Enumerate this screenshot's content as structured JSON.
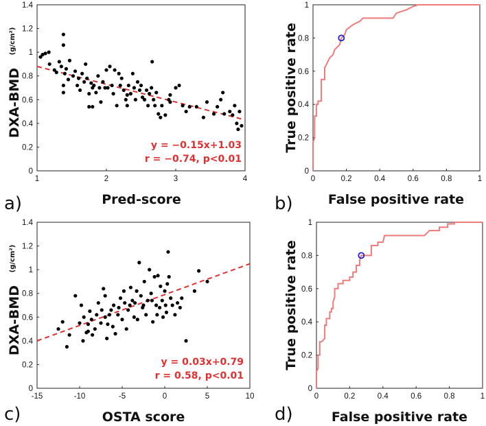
{
  "chart_data": [
    {
      "panel": "a)",
      "type": "scatter",
      "xlabel": "Pred-score",
      "ylabel": "DXA-BMD",
      "ylabel_unit": "(g/cm²)",
      "xlim": [
        1,
        4
      ],
      "ylim": [
        0,
        1.4
      ],
      "xticks": [
        1,
        2,
        3,
        4
      ],
      "yticks": [
        0,
        0.2,
        0.4,
        0.6,
        0.8,
        1,
        1.2,
        1.4
      ],
      "fit_line": {
        "slope": -0.15,
        "intercept": 1.03,
        "color": "#e03030"
      },
      "annotation": [
        "y = −0.15x+1.03",
        "r = −0.74, p<0.01"
      ],
      "point_color": "#000000",
      "points": [
        [
          1.05,
          0.96
        ],
        [
          1.08,
          0.98
        ],
        [
          1.12,
          0.99
        ],
        [
          1.17,
          1.0
        ],
        [
          1.18,
          0.9
        ],
        [
          1.25,
          0.85
        ],
        [
          1.28,
          0.83
        ],
        [
          1.32,
          0.92
        ],
        [
          1.35,
          0.88
        ],
        [
          1.38,
          1.15
        ],
        [
          1.38,
          1.06
        ],
        [
          1.38,
          0.72
        ],
        [
          1.38,
          0.66
        ],
        [
          1.4,
          0.82
        ],
        [
          1.42,
          0.86
        ],
        [
          1.45,
          0.77
        ],
        [
          1.47,
          0.93
        ],
        [
          1.52,
          0.8
        ],
        [
          1.55,
          0.84
        ],
        [
          1.58,
          0.72
        ],
        [
          1.6,
          0.78
        ],
        [
          1.62,
          0.68
        ],
        [
          1.65,
          0.82
        ],
        [
          1.68,
          0.75
        ],
        [
          1.7,
          0.9
        ],
        [
          1.72,
          0.78
        ],
        [
          1.75,
          0.65
        ],
        [
          1.75,
          0.54
        ],
        [
          1.78,
          0.74
        ],
        [
          1.8,
          0.7
        ],
        [
          1.8,
          0.54
        ],
        [
          1.82,
          0.72
        ],
        [
          1.85,
          0.66
        ],
        [
          1.88,
          0.8
        ],
        [
          1.9,
          0.7
        ],
        [
          1.92,
          0.58
        ],
        [
          1.95,
          0.75
        ],
        [
          1.98,
          0.7
        ],
        [
          2.0,
          0.85
        ],
        [
          2.02,
          0.7
        ],
        [
          2.05,
          0.88
        ],
        [
          2.08,
          0.72
        ],
        [
          2.1,
          0.65
        ],
        [
          2.12,
          0.85
        ],
        [
          2.15,
          0.55
        ],
        [
          2.18,
          0.82
        ],
        [
          2.2,
          0.72
        ],
        [
          2.22,
          0.78
        ],
        [
          2.25,
          0.68
        ],
        [
          2.28,
          0.6
        ],
        [
          2.3,
          0.64
        ],
        [
          2.3,
          0.55
        ],
        [
          2.32,
          0.72
        ],
        [
          2.35,
          0.65
        ],
        [
          2.38,
          0.82
        ],
        [
          2.4,
          0.7
        ],
        [
          2.42,
          0.6
        ],
        [
          2.45,
          0.75
        ],
        [
          2.48,
          0.68
        ],
        [
          2.5,
          0.72
        ],
        [
          2.52,
          0.62
        ],
        [
          2.55,
          0.6
        ],
        [
          2.58,
          0.68
        ],
        [
          2.6,
          0.55
        ],
        [
          2.62,
          0.65
        ],
        [
          2.65,
          0.7
        ],
        [
          2.66,
          0.92
        ],
        [
          2.68,
          0.6
        ],
        [
          2.7,
          0.55
        ],
        [
          2.72,
          0.66
        ],
        [
          2.75,
          0.48
        ],
        [
          2.78,
          0.45
        ],
        [
          2.8,
          0.55
        ],
        [
          2.85,
          0.47
        ],
        [
          2.9,
          0.6
        ],
        [
          2.92,
          0.58
        ],
        [
          2.92,
          0.64
        ],
        [
          3.0,
          0.7
        ],
        [
          3.05,
          0.72
        ],
        [
          3.1,
          0.55
        ],
        [
          3.15,
          0.5
        ],
        [
          3.2,
          0.54
        ],
        [
          3.3,
          0.54
        ],
        [
          3.4,
          0.45
        ],
        [
          3.45,
          0.58
        ],
        [
          3.55,
          0.48
        ],
        [
          3.6,
          0.54
        ],
        [
          3.65,
          0.6
        ],
        [
          3.68,
          0.66
        ],
        [
          3.7,
          0.48
        ],
        [
          3.78,
          0.5
        ],
        [
          3.82,
          0.47
        ],
        [
          3.85,
          0.55
        ],
        [
          3.88,
          0.4
        ],
        [
          3.9,
          0.35
        ],
        [
          3.92,
          0.5
        ],
        [
          3.95,
          0.38
        ]
      ]
    },
    {
      "panel": "b)",
      "type": "line",
      "xlabel": "False positive rate",
      "ylabel": "True positive rate",
      "xlim": [
        0,
        1
      ],
      "ylim": [
        0,
        1
      ],
      "xticks": [
        0,
        0.2,
        0.4,
        0.6,
        0.8,
        1
      ],
      "yticks": [
        0,
        0.2,
        0.4,
        0.6,
        0.8,
        1
      ],
      "line_color": "#f07a7a",
      "roc": [
        [
          0,
          0
        ],
        [
          0,
          0.03
        ],
        [
          0,
          0.17
        ],
        [
          0.01,
          0.2
        ],
        [
          0.01,
          0.33
        ],
        [
          0.02,
          0.33
        ],
        [
          0.02,
          0.4
        ],
        [
          0.03,
          0.4
        ],
        [
          0.03,
          0.42
        ],
        [
          0.05,
          0.42
        ],
        [
          0.05,
          0.55
        ],
        [
          0.07,
          0.55
        ],
        [
          0.07,
          0.62
        ],
        [
          0.1,
          0.68
        ],
        [
          0.12,
          0.7
        ],
        [
          0.13,
          0.73
        ],
        [
          0.16,
          0.76
        ],
        [
          0.17,
          0.8
        ],
        [
          0.19,
          0.82
        ],
        [
          0.2,
          0.85
        ],
        [
          0.24,
          0.88
        ],
        [
          0.28,
          0.9
        ],
        [
          0.3,
          0.92
        ],
        [
          0.48,
          0.92
        ],
        [
          0.5,
          0.95
        ],
        [
          0.56,
          0.97
        ],
        [
          0.6,
          0.99
        ],
        [
          0.63,
          1.0
        ],
        [
          1.0,
          1.0
        ]
      ],
      "marker": {
        "x": 0.17,
        "y": 0.8,
        "color": "#2020d0"
      }
    },
    {
      "panel": "c)",
      "type": "scatter",
      "xlabel": "OSTA score",
      "ylabel": "DXA-BMD",
      "ylabel_unit": "(g/cm²)",
      "xlim": [
        -15,
        10
      ],
      "ylim": [
        0,
        1.4
      ],
      "xticks": [
        -15,
        -10,
        -5,
        0,
        5,
        10
      ],
      "yticks": [
        0,
        0.2,
        0.4,
        0.6,
        0.8,
        1,
        1.2,
        1.4
      ],
      "fit_line": {
        "slope": 0.026,
        "intercept": 0.79,
        "color": "#e03030"
      },
      "annotation": [
        "y = 0.03x+0.79",
        "r = 0.58, p<0.01"
      ],
      "point_color": "#000000",
      "points": [
        [
          -12.5,
          0.5
        ],
        [
          -12.0,
          0.56
        ],
        [
          -11.5,
          0.35
        ],
        [
          -11.2,
          0.45
        ],
        [
          -10.0,
          0.55
        ],
        [
          -9.8,
          0.7
        ],
        [
          -9.6,
          0.4
        ],
        [
          -9.5,
          0.6
        ],
        [
          -9.2,
          0.47
        ],
        [
          -9.0,
          0.48
        ],
        [
          -8.8,
          0.65
        ],
        [
          -8.5,
          0.45
        ],
        [
          -8.2,
          0.5
        ],
        [
          -8.0,
          0.62
        ],
        [
          -7.8,
          0.72
        ],
        [
          -7.5,
          0.55
        ],
        [
          -7.2,
          0.84
        ],
        [
          -7.0,
          0.6
        ],
        [
          -6.8,
          0.42
        ],
        [
          -6.7,
          0.54
        ],
        [
          -6.5,
          0.62
        ],
        [
          -6.3,
          0.66
        ],
        [
          -6.0,
          0.7
        ],
        [
          -5.8,
          0.46
        ],
        [
          -5.5,
          0.62
        ],
        [
          -5.2,
          0.76
        ],
        [
          -5.0,
          0.58
        ],
        [
          -4.8,
          0.82
        ],
        [
          -4.7,
          0.72
        ],
        [
          -4.5,
          0.5
        ],
        [
          -4.3,
          0.66
        ],
        [
          -4.0,
          0.85
        ],
        [
          -3.8,
          0.74
        ],
        [
          -3.6,
          0.6
        ],
        [
          -3.5,
          0.72
        ],
        [
          -3.2,
          0.58
        ],
        [
          -3.0,
          1.06
        ],
        [
          -2.8,
          0.78
        ],
        [
          -2.6,
          0.68
        ],
        [
          -2.4,
          0.9
        ],
        [
          -2.2,
          0.62
        ],
        [
          -2.0,
          0.74
        ],
        [
          -1.8,
          1.0
        ],
        [
          -1.6,
          0.8
        ],
        [
          -1.4,
          0.56
        ],
        [
          -1.2,
          0.94
        ],
        [
          -1.0,
          0.7
        ],
        [
          -0.8,
          0.95
        ],
        [
          -0.6,
          0.68
        ],
        [
          -0.5,
          0.86
        ],
        [
          -0.3,
          0.74
        ],
        [
          -0.2,
          0.6
        ],
        [
          0.0,
          0.82
        ],
        [
          0.1,
          0.7
        ],
        [
          0.2,
          0.64
        ],
        [
          0.4,
          1.15
        ],
        [
          0.5,
          0.94
        ],
        [
          0.7,
          0.76
        ],
        [
          0.9,
          0.7
        ],
        [
          1.2,
          0.62
        ],
        [
          1.5,
          0.72
        ],
        [
          1.8,
          0.68
        ],
        [
          2.0,
          0.76
        ],
        [
          2.5,
          0.4
        ],
        [
          3.5,
          0.82
        ],
        [
          4.0,
          0.99
        ],
        [
          5.0,
          0.9
        ],
        [
          -10.5,
          0.78
        ],
        [
          -8.6,
          0.58
        ],
        [
          -7.4,
          0.66
        ],
        [
          -6.1,
          0.52
        ],
        [
          -5.4,
          0.68
        ],
        [
          -4.1,
          0.7
        ],
        [
          -3.3,
          0.82
        ],
        [
          -2.5,
          0.7
        ],
        [
          -1.5,
          0.74
        ],
        [
          -0.9,
          0.62
        ],
        [
          0.3,
          0.88
        ],
        [
          -9.0,
          0.54
        ],
        [
          -7.0,
          0.78
        ]
      ]
    },
    {
      "panel": "d)",
      "type": "line",
      "xlabel": "False positive rate",
      "ylabel": "True positive rate",
      "xlim": [
        0,
        1
      ],
      "ylim": [
        0,
        1
      ],
      "xticks": [
        0,
        0.2,
        0.4,
        0.6,
        0.8,
        1
      ],
      "yticks": [
        0,
        0.2,
        0.4,
        0.6,
        0.8,
        1
      ],
      "line_color": "#f07a7a",
      "roc": [
        [
          0,
          0
        ],
        [
          0,
          0.1
        ],
        [
          0.01,
          0.12
        ],
        [
          0.01,
          0.2
        ],
        [
          0.02,
          0.2
        ],
        [
          0.02,
          0.28
        ],
        [
          0.03,
          0.28
        ],
        [
          0.04,
          0.29
        ],
        [
          0.05,
          0.3
        ],
        [
          0.05,
          0.38
        ],
        [
          0.06,
          0.38
        ],
        [
          0.06,
          0.42
        ],
        [
          0.08,
          0.42
        ],
        [
          0.08,
          0.46
        ],
        [
          0.09,
          0.46
        ],
        [
          0.09,
          0.48
        ],
        [
          0.1,
          0.48
        ],
        [
          0.1,
          0.52
        ],
        [
          0.11,
          0.55
        ],
        [
          0.11,
          0.6
        ],
        [
          0.13,
          0.6
        ],
        [
          0.13,
          0.63
        ],
        [
          0.16,
          0.63
        ],
        [
          0.16,
          0.65
        ],
        [
          0.2,
          0.65
        ],
        [
          0.2,
          0.67
        ],
        [
          0.22,
          0.67
        ],
        [
          0.22,
          0.7
        ],
        [
          0.24,
          0.7
        ],
        [
          0.24,
          0.74
        ],
        [
          0.26,
          0.74
        ],
        [
          0.26,
          0.77
        ],
        [
          0.27,
          0.8
        ],
        [
          0.29,
          0.8
        ],
        [
          0.33,
          0.8
        ],
        [
          0.33,
          0.86
        ],
        [
          0.37,
          0.86
        ],
        [
          0.37,
          0.88
        ],
        [
          0.4,
          0.88
        ],
        [
          0.41,
          0.92
        ],
        [
          0.65,
          0.92
        ],
        [
          0.68,
          0.95
        ],
        [
          0.74,
          0.95
        ],
        [
          0.74,
          0.97
        ],
        [
          0.79,
          0.97
        ],
        [
          0.79,
          0.99
        ],
        [
          0.83,
          0.99
        ],
        [
          0.83,
          1.0
        ],
        [
          1.0,
          1.0
        ]
      ],
      "marker": {
        "x": 0.27,
        "y": 0.8,
        "color": "#2020d0"
      }
    }
  ]
}
